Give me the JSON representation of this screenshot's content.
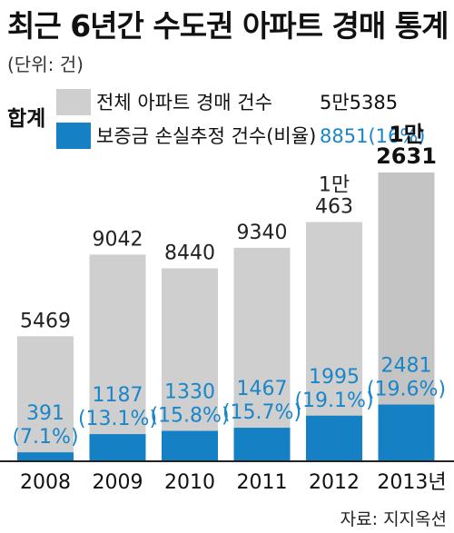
{
  "title": "최근 6년간 수도권 아파트 경매 통계",
  "unit": "(단위: 건)",
  "legend": {
    "group_label": "합계",
    "items": [
      {
        "label": "전체 아파트 경매 건수",
        "value": "5만5385",
        "color": "#cfcfcf"
      },
      {
        "label": "보증금 손실추정 건수(비율)",
        "value": "8851(16%)",
        "color": "#1580c4"
      }
    ]
  },
  "chart_data": {
    "type": "bar",
    "categories": [
      "2008",
      "2009",
      "2010",
      "2011",
      "2012",
      "2013년"
    ],
    "series": [
      {
        "name": "전체 아파트 경매 건수",
        "values": [
          5469,
          9042,
          8440,
          9340,
          10463,
          12631
        ]
      },
      {
        "name": "보증금 손실추정 건수(비율)",
        "values": [
          391,
          1187,
          1330,
          1467,
          1995,
          2481
        ]
      }
    ],
    "total_labels": [
      [
        "5469"
      ],
      [
        "9042"
      ],
      [
        "8440"
      ],
      [
        "9340"
      ],
      [
        "1만",
        "463"
      ],
      [
        "1만",
        "2631"
      ]
    ],
    "loss_labels": [
      "391",
      "1187",
      "1330",
      "1467",
      "1995",
      "2481"
    ],
    "ratio_labels": [
      "(7.1%)",
      "(13.1%)",
      "(15.8%)",
      "(15.7%)",
      "(19.1%)",
      "(19.6%)"
    ],
    "highlight_index": 5,
    "colors": {
      "total": "#cfcfcf",
      "loss": "#1580c4",
      "loss_text": "#1a86c8",
      "highlight_total": "#c4c4c4"
    }
  },
  "source": "자료: 지지옥션"
}
